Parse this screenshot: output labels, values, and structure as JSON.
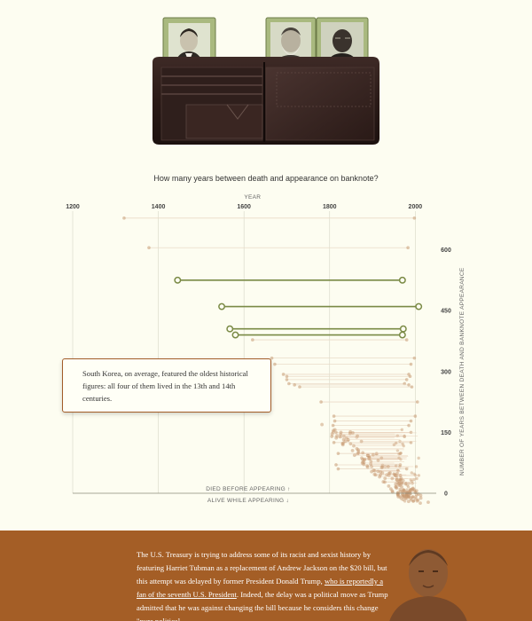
{
  "chart_title": "How many years between death and appearance on banknote?",
  "annotation": "South Korea, on average, featured the oldest historical figures: all four of them lived in the 13th and 14th centuries.",
  "footer": {
    "text_1": "The U.S. Treasury is trying to address some of its racist and sexist history by featuring Harriet Tubman as a replacement of Andrew Jackson on the $20 bill, but this attempt was delayed by former President Donald Trump, ",
    "link": "who is reportedly a fan of the seventh U.S. President",
    "text_2": ". Indeed, the delay was a political move as Trump admitted that he was against changing the bill because he considers this change \"pure political"
  },
  "colors": {
    "background": "#fdfdf1",
    "highlight": "#7a8a45",
    "dots": "#c79a72",
    "footer": "#a45e26"
  },
  "chart_data": {
    "type": "scatter",
    "x_axis": {
      "label": "YEAR",
      "range": [
        1200,
        2020
      ],
      "ticks": [
        "1200",
        "1400",
        "1600",
        "1800",
        "2000"
      ]
    },
    "y_axis": {
      "label": "NUMBER OF YEARS BETWEEN DEATH AND BANKNOTE APPEARANCE",
      "range": [
        -35,
        650
      ],
      "ticks": [
        "0",
        "150",
        "300",
        "450",
        "600"
      ]
    },
    "zero_labels": {
      "above": "DIED BEFORE APPEARING ↑",
      "below": "ALIVE WHILE APPEARING ↓"
    },
    "highlighted": [
      {
        "death": 1445,
        "appear": 1970,
        "gap": 525
      },
      {
        "death": 1548,
        "appear": 2008,
        "gap": 460
      },
      {
        "death": 1567,
        "appear": 1972,
        "gap": 405
      },
      {
        "death": 1580,
        "appear": 1970,
        "gap": 390
      }
    ],
    "faint": [
      {
        "death": 1320,
        "appear": 1998,
        "gap": 678
      },
      {
        "death": 1378,
        "appear": 1983,
        "gap": 605
      },
      {
        "death": 1620,
        "appear": 1980,
        "gap": 378
      },
      {
        "death": 1665,
        "appear": 1998,
        "gap": 333
      },
      {
        "death": 1672,
        "appear": 1990,
        "gap": 318
      },
      {
        "death": 1692,
        "appear": 1985,
        "gap": 293
      },
      {
        "death": 1700,
        "appear": 1988,
        "gap": 288
      },
      {
        "death": 1700,
        "appear": 1980,
        "gap": 280
      },
      {
        "death": 1705,
        "appear": 1975,
        "gap": 270
      },
      {
        "death": 1718,
        "appear": 1985,
        "gap": 267
      },
      {
        "death": 1730,
        "appear": 1992,
        "gap": 262
      },
      {
        "death": 1780,
        "appear": 2005,
        "gap": 225
      },
      {
        "death": 1810,
        "appear": 2000,
        "gap": 190
      },
      {
        "death": 1812,
        "appear": 1990,
        "gap": 178
      },
      {
        "death": 1808,
        "appear": 1985,
        "gap": 167
      },
      {
        "death": 1815,
        "appear": 1990,
        "gap": 150
      },
      {
        "death": 1805,
        "appear": 1975,
        "gap": 140
      },
      {
        "death": 1810,
        "appear": 1990,
        "gap": 125
      },
      {
        "death": 1820,
        "appear": 1965,
        "gap": 98
      },
      {
        "death": 1815,
        "appear": 1965,
        "gap": 70
      },
      {
        "death": 1820,
        "appear": 1980,
        "gap": 60
      }
    ]
  }
}
